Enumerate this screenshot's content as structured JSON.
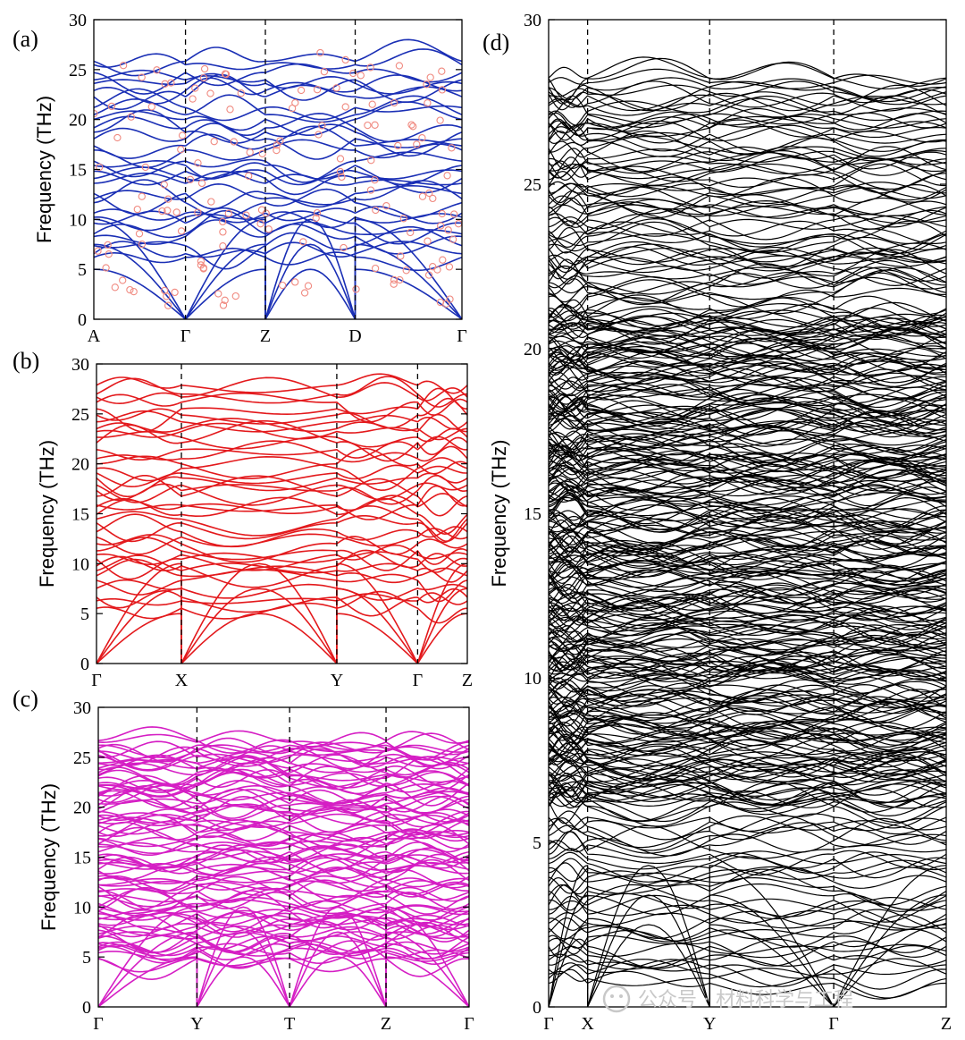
{
  "chart_data": [
    {
      "id": "a",
      "label": "(a)",
      "type": "line",
      "color": "#1a2fb5",
      "marker_color": "#f08a80",
      "ylabel": "Frequency (THz)",
      "ylim": [
        0,
        30
      ],
      "yticks": [
        0,
        5,
        10,
        15,
        20,
        25,
        30
      ],
      "path_labels": [
        "A",
        "Γ",
        "Z",
        "D",
        "Γ"
      ],
      "series_description": "phonon dispersion bands (lines) with reference points (circles)",
      "max_frequency": 26.8
    },
    {
      "id": "b",
      "label": "(b)",
      "type": "line",
      "color": "#e3191c",
      "ylabel": "Frequency (THz)",
      "ylim": [
        0,
        30
      ],
      "yticks": [
        0,
        5,
        10,
        15,
        20,
        25,
        30
      ],
      "path_labels": [
        "Γ",
        "X",
        "Y",
        "Γ",
        "Z"
      ],
      "max_frequency": 28.2
    },
    {
      "id": "c",
      "label": "(c)",
      "type": "line",
      "color": "#d51ec4",
      "ylabel": "Frequency (THz)",
      "ylim": [
        0,
        30
      ],
      "yticks": [
        0,
        5,
        10,
        15,
        20,
        25,
        30
      ],
      "path_labels": [
        "Γ",
        "Y",
        "T",
        "Z",
        "Γ"
      ],
      "max_frequency": 27.2
    },
    {
      "id": "d",
      "label": "(d)",
      "type": "line",
      "color": "#000000",
      "ylabel": "Frequency (THz)",
      "ylim": [
        0,
        30
      ],
      "yticks": [
        0,
        5,
        10,
        15,
        20,
        25,
        30
      ],
      "path_labels": [
        "Γ",
        "X",
        "Y",
        "Γ",
        "Z"
      ],
      "max_frequency": 28.3
    }
  ],
  "watermark": "公众号 · 材料科学与工程"
}
